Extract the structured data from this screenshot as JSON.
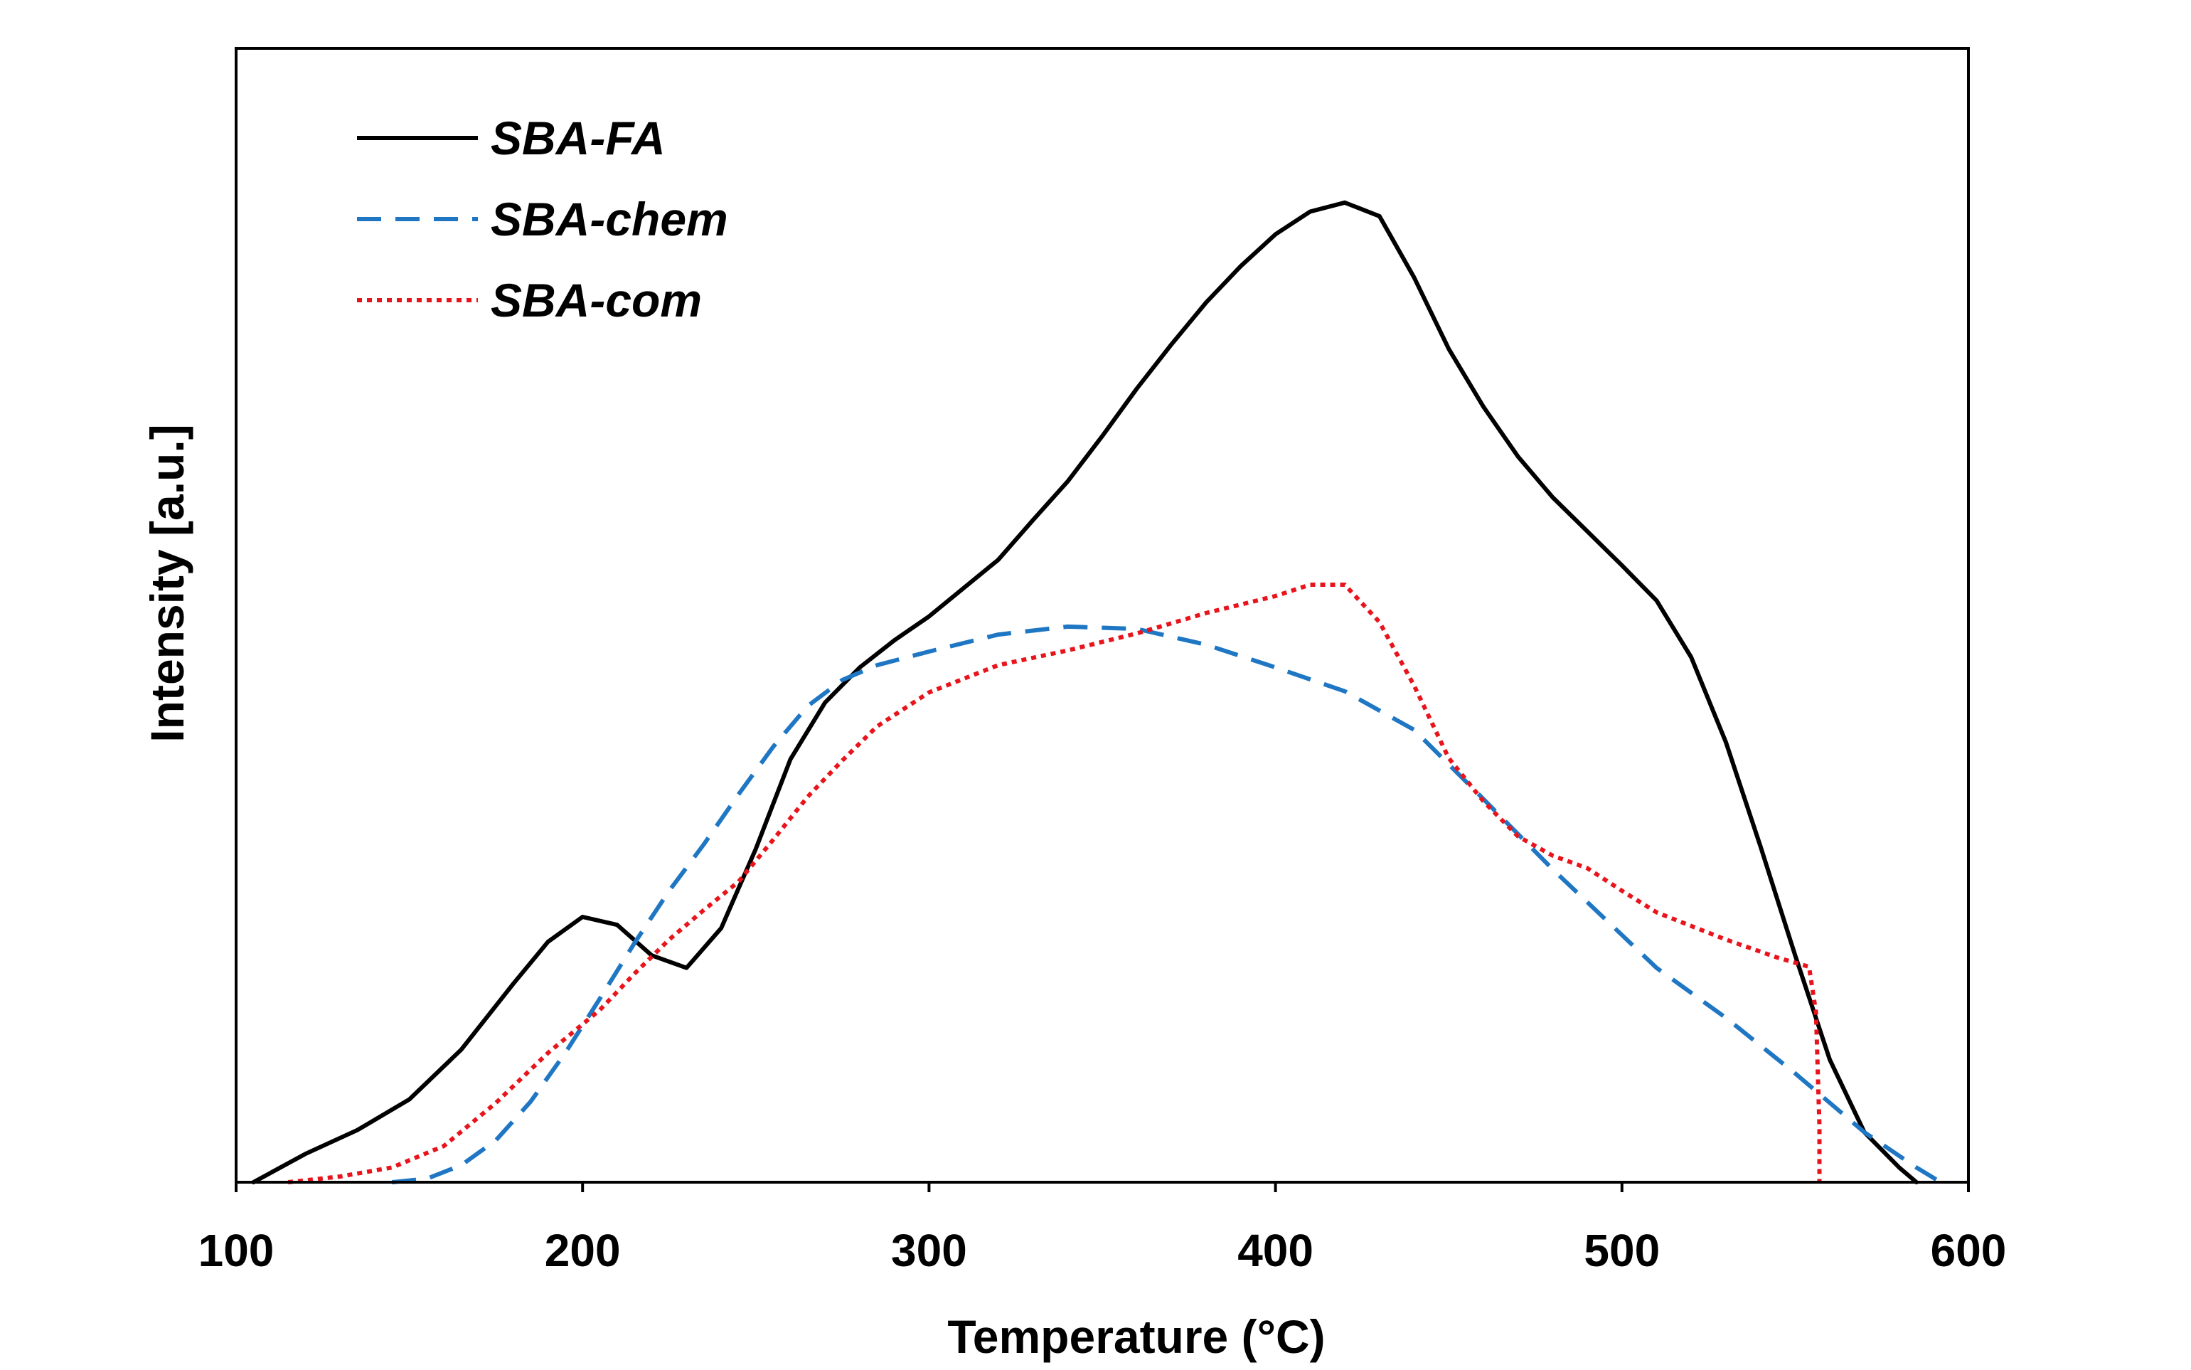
{
  "chart_data": {
    "type": "line",
    "title": "",
    "xlabel": "Temperature (°C)",
    "ylabel": "Intensity [a.u.]",
    "xlim": [
      100,
      600
    ],
    "ylim": [
      0,
      100
    ],
    "xticks": [
      100,
      200,
      300,
      400,
      500,
      600
    ],
    "yticks": [],
    "grid": false,
    "legend_position": "top-left",
    "series": [
      {
        "name": "SBA-FA",
        "color": "#000000",
        "style": "solid",
        "points": [
          [
            105,
            0
          ],
          [
            120,
            2.5
          ],
          [
            135,
            4.6
          ],
          [
            150,
            7.3
          ],
          [
            165,
            11.7
          ],
          [
            180,
            17.5
          ],
          [
            190,
            21.2
          ],
          [
            200,
            23.4
          ],
          [
            210,
            22.7
          ],
          [
            220,
            20
          ],
          [
            230,
            18.9
          ],
          [
            240,
            22.4
          ],
          [
            250,
            29.4
          ],
          [
            260,
            37.3
          ],
          [
            270,
            42.3
          ],
          [
            280,
            45.4
          ],
          [
            290,
            47.8
          ],
          [
            300,
            49.9
          ],
          [
            320,
            54.9
          ],
          [
            330,
            58.4
          ],
          [
            340,
            61.8
          ],
          [
            350,
            65.8
          ],
          [
            360,
            70
          ],
          [
            370,
            73.9
          ],
          [
            380,
            77.6
          ],
          [
            390,
            80.8
          ],
          [
            400,
            83.6
          ],
          [
            410,
            85.6
          ],
          [
            420,
            86.4
          ],
          [
            430,
            85.2
          ],
          [
            440,
            79.8
          ],
          [
            450,
            73.5
          ],
          [
            460,
            68.4
          ],
          [
            470,
            64
          ],
          [
            480,
            60.4
          ],
          [
            490,
            57.4
          ],
          [
            500,
            54.4
          ],
          [
            510,
            51.3
          ],
          [
            520,
            46.3
          ],
          [
            530,
            38.8
          ],
          [
            540,
            29.6
          ],
          [
            550,
            20
          ],
          [
            560,
            10.8
          ],
          [
            570,
            4.4
          ],
          [
            580,
            1.3
          ],
          [
            585,
            0
          ]
        ]
      },
      {
        "name": "SBA-chem",
        "color": "#1f77c4",
        "style": "dashed",
        "points": [
          [
            145,
            0
          ],
          [
            155,
            0.3
          ],
          [
            165,
            1.5
          ],
          [
            175,
            3.7
          ],
          [
            185,
            7.1
          ],
          [
            195,
            11.4
          ],
          [
            205,
            16.2
          ],
          [
            215,
            21.1
          ],
          [
            225,
            25.7
          ],
          [
            235,
            29.8
          ],
          [
            245,
            34.2
          ],
          [
            255,
            38.4
          ],
          [
            265,
            42
          ],
          [
            275,
            44.3
          ],
          [
            285,
            45.6
          ],
          [
            300,
            46.8
          ],
          [
            320,
            48.3
          ],
          [
            340,
            49
          ],
          [
            360,
            48.8
          ],
          [
            380,
            47.4
          ],
          [
            400,
            45.4
          ],
          [
            420,
            43.3
          ],
          [
            440,
            39.9
          ],
          [
            460,
            33.8
          ],
          [
            480,
            27.6
          ],
          [
            500,
            21.8
          ],
          [
            510,
            18.9
          ],
          [
            530,
            14.5
          ],
          [
            550,
            9.6
          ],
          [
            570,
            4.4
          ],
          [
            585,
            1.3
          ],
          [
            592,
            0
          ]
        ]
      },
      {
        "name": "SBA-com",
        "color": "#e8141c",
        "style": "dotted",
        "points": [
          [
            115,
            0
          ],
          [
            130,
            0.5
          ],
          [
            145,
            1.3
          ],
          [
            160,
            3.2
          ],
          [
            175,
            7
          ],
          [
            190,
            11.4
          ],
          [
            205,
            15.2
          ],
          [
            215,
            18.4
          ],
          [
            225,
            21.4
          ],
          [
            235,
            24
          ],
          [
            245,
            26.5
          ],
          [
            255,
            30.2
          ],
          [
            265,
            34
          ],
          [
            275,
            37.2
          ],
          [
            285,
            40.2
          ],
          [
            300,
            43.2
          ],
          [
            320,
            45.6
          ],
          [
            340,
            46.9
          ],
          [
            360,
            48.4
          ],
          [
            380,
            50.2
          ],
          [
            400,
            51.7
          ],
          [
            410,
            52.7
          ],
          [
            420,
            52.7
          ],
          [
            430,
            49.4
          ],
          [
            440,
            43.8
          ],
          [
            450,
            37.4
          ],
          [
            460,
            33.6
          ],
          [
            470,
            30.5
          ],
          [
            480,
            28.8
          ],
          [
            490,
            27.7
          ],
          [
            500,
            25.7
          ],
          [
            510,
            23.8
          ],
          [
            520,
            22.6
          ],
          [
            530,
            21.4
          ],
          [
            545,
            19.8
          ],
          [
            554,
            19
          ],
          [
            556,
            15
          ],
          [
            557,
            5
          ],
          [
            557,
            0
          ]
        ]
      }
    ]
  }
}
